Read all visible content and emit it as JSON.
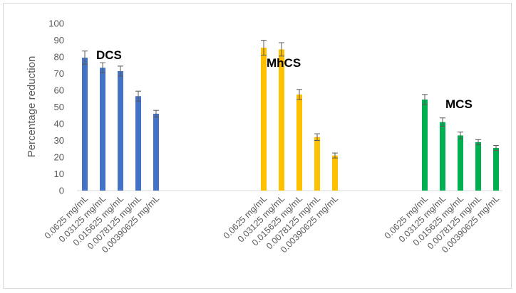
{
  "chart_data": {
    "type": "bar",
    "ylabel": "Percentage reduction",
    "ylim": [
      0,
      100
    ],
    "yticks": [
      0,
      10,
      20,
      30,
      40,
      50,
      60,
      70,
      80,
      90,
      100
    ],
    "grid": false,
    "legend": "none",
    "groups": [
      {
        "name": "DCS",
        "color": "#4472c4",
        "categories": [
          "0.0625 mg/mL",
          "0.03125 mg/mL",
          "0.015625 mg/mL",
          "0.0078125 mg/mL",
          "0.00390625 mg/mL"
        ],
        "values": [
          79.5,
          73.5,
          71.5,
          56.5,
          46
        ],
        "errors": [
          4,
          3,
          3,
          3,
          2
        ]
      },
      {
        "name": "MhCS",
        "color": "#ffc000",
        "categories": [
          "0.0625 mg/mL",
          "0.03125 mg/mL",
          "0.015625 mg/mL",
          "0.0078125 mg/mL",
          "0.00390625 mg/mL"
        ],
        "values": [
          85.5,
          84.5,
          57.5,
          32,
          21
        ],
        "errors": [
          4.5,
          4,
          3,
          2,
          1.5
        ]
      },
      {
        "name": "MCS",
        "color": "#00b050",
        "categories": [
          "0.0625 mg/mL",
          "0.03125 mg/mL",
          "0.015625 mg/mL",
          "0.0078125 mg/mL",
          "0.00390625 mg/mL"
        ],
        "values": [
          54.5,
          41,
          33,
          29,
          25.5
        ],
        "errors": [
          3,
          2.5,
          2,
          1.5,
          1.5
        ]
      }
    ]
  }
}
